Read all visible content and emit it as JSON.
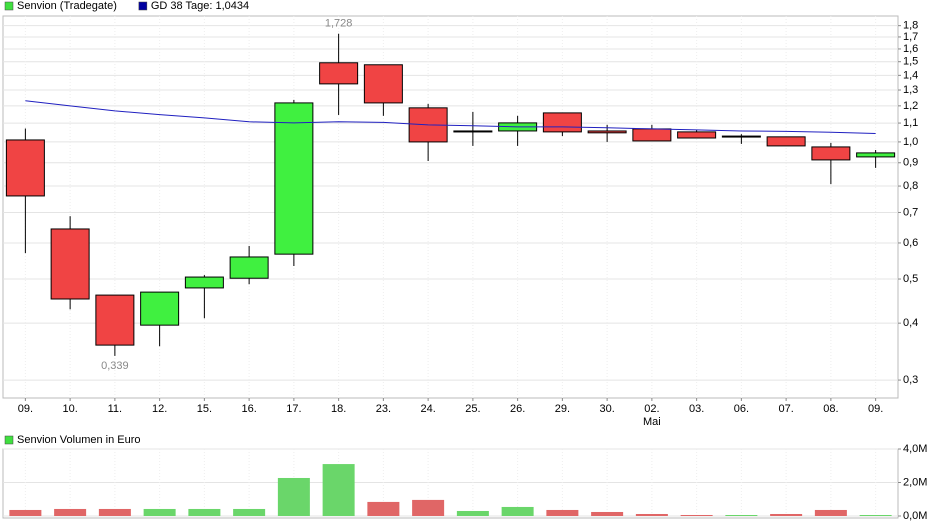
{
  "chart_data": [
    {
      "type": "candlestick",
      "legend": [
        {
          "name": "Senvion (Tradegate)",
          "color": "#40e040"
        },
        {
          "name": "GD 38 Tage: 1,0434",
          "color": "#0000a0"
        }
      ],
      "categories": [
        "09.",
        "10.",
        "11.",
        "12.",
        "15.",
        "16.",
        "17.",
        "18.",
        "23.",
        "24.",
        "25.",
        "26.",
        "29.",
        "30.",
        "02.",
        "03.",
        "06.",
        "07.",
        "08.",
        "09."
      ],
      "category_sublabels": [
        null,
        null,
        null,
        null,
        null,
        null,
        null,
        null,
        null,
        null,
        null,
        null,
        null,
        null,
        "Mai",
        null,
        null,
        null,
        null,
        null
      ],
      "open": [
        1.01,
        0.644,
        0.461,
        0.396,
        0.478,
        0.502,
        0.567,
        1.492,
        1.477,
        1.188,
        1.057,
        1.057,
        1.158,
        1.057,
        1.068,
        1.052,
        1.03,
        1.026,
        0.975,
        0.927
      ],
      "high": [
        1.07,
        0.687,
        0.461,
        0.468,
        0.51,
        0.591,
        1.237,
        1.728,
        1.477,
        1.212,
        1.164,
        1.141,
        1.158,
        1.09,
        1.09,
        1.062,
        1.04,
        1.026,
        0.995,
        0.96
      ],
      "low": [
        0.57,
        0.429,
        0.339,
        0.356,
        0.41,
        0.487,
        0.534,
        1.146,
        1.141,
        0.908,
        0.98,
        0.98,
        1.03,
        1.0,
        1.005,
        1.02,
        0.99,
        0.98,
        0.808,
        0.877
      ],
      "close": [
        0.761,
        0.452,
        0.358,
        0.468,
        0.505,
        0.559,
        1.218,
        1.341,
        1.218,
        1.0,
        1.057,
        1.101,
        1.052,
        1.047,
        1.005,
        1.02,
        1.025,
        0.98,
        0.913,
        0.946
      ],
      "up_color": "#40f040",
      "down_color": "#f04444",
      "series": [
        {
          "name": "GD 38 Tage",
          "color": "#2020c0",
          "values": [
            1.231,
            1.2,
            1.17,
            1.148,
            1.129,
            1.107,
            1.101,
            1.107,
            1.104,
            1.09,
            1.085,
            1.079,
            1.079,
            1.074,
            1.068,
            1.063,
            1.057,
            1.055,
            1.05,
            1.0434
          ]
        }
      ],
      "annotations": [
        {
          "label": "1,728",
          "value": 1.728
        },
        {
          "label": "0,339",
          "value": 0.339
        }
      ],
      "log_scale": true,
      "grid": true,
      "ylim": [
        0.274,
        1.89
      ],
      "yticks": [
        {
          "value": 0.3,
          "label": "0,3"
        },
        {
          "value": 0.4,
          "label": "0,4"
        },
        {
          "value": 0.5,
          "label": "0,5"
        },
        {
          "value": 0.6,
          "label": "0,6"
        },
        {
          "value": 0.7,
          "label": "0,7"
        },
        {
          "value": 0.8,
          "label": "0,8"
        },
        {
          "value": 0.9,
          "label": "0,9"
        },
        {
          "value": 1.0,
          "label": "1,0"
        },
        {
          "value": 1.1,
          "label": "1,1"
        },
        {
          "value": 1.2,
          "label": "1,2"
        },
        {
          "value": 1.3,
          "label": "1,3"
        },
        {
          "value": 1.4,
          "label": "1,4"
        },
        {
          "value": 1.5,
          "label": "1,5"
        },
        {
          "value": 1.6,
          "label": "1,6"
        },
        {
          "value": 1.7,
          "label": "1,7"
        },
        {
          "value": 1.8,
          "label": "1,8"
        }
      ]
    },
    {
      "type": "bar",
      "legend": [
        {
          "name": "Senvion Volumen in Euro",
          "color": "#40e040"
        }
      ],
      "values": [
        360000,
        420000,
        420000,
        420000,
        420000,
        420000,
        2270000,
        3100000,
        840000,
        960000,
        300000,
        540000,
        360000,
        240000,
        120000,
        60000,
        60000,
        120000,
        360000,
        60000
      ],
      "colors": [
        "#e06666",
        "#e06666",
        "#e06666",
        "#6ad66a",
        "#6ad66a",
        "#6ad66a",
        "#6ad66a",
        "#6ad66a",
        "#e06666",
        "#e06666",
        "#6ad66a",
        "#6ad66a",
        "#e06666",
        "#e06666",
        "#e06666",
        "#e06666",
        "#6ad66a",
        "#e06666",
        "#e06666",
        "#6ad66a"
      ],
      "grid": true,
      "ylim": [
        0,
        4000000
      ],
      "yticks": [
        {
          "value": 0,
          "label": "0,0M"
        },
        {
          "value": 2000000,
          "label": "2,0M"
        },
        {
          "value": 4000000,
          "label": "4,0M"
        }
      ]
    }
  ]
}
